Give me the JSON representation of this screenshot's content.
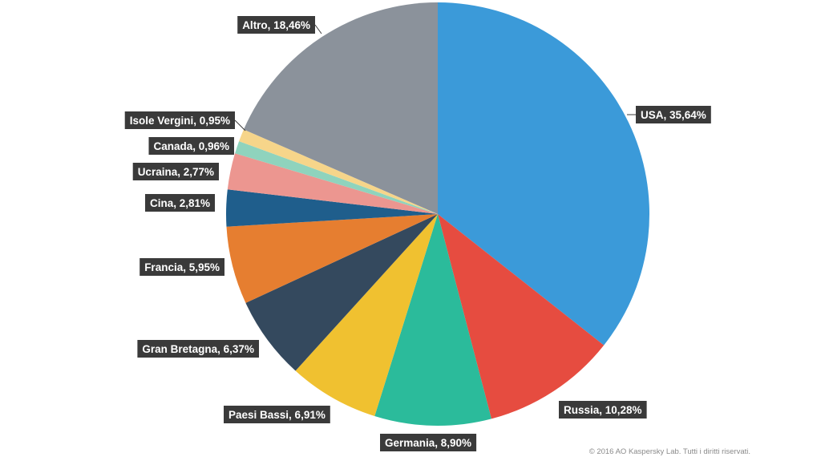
{
  "chart_data": {
    "type": "pie",
    "slices": [
      {
        "label": "USA, 35,64%",
        "name": "USA",
        "value": 35.64,
        "color": "#3b9ad9"
      },
      {
        "label": "Russia, 10,28%",
        "name": "Russia",
        "value": 10.28,
        "color": "#e64c40"
      },
      {
        "label": "Germania, 8,90%",
        "name": "Germania",
        "value": 8.9,
        "color": "#2bbb9b"
      },
      {
        "label": "Paesi Bassi, 6,91%",
        "name": "Paesi Bassi",
        "value": 6.91,
        "color": "#f0c130"
      },
      {
        "label": "Gran Bretagna, 6,37%",
        "name": "Gran Bretagna",
        "value": 6.37,
        "color": "#34495e"
      },
      {
        "label": "Francia, 5,95%",
        "name": "Francia",
        "value": 5.95,
        "color": "#e67e30"
      },
      {
        "label": "Cina, 2,81%",
        "name": "Cina",
        "value": 2.81,
        "color": "#1f5e8c"
      },
      {
        "label": "Ucraina, 2,77%",
        "name": "Ucraina",
        "value": 2.77,
        "color": "#ec9690"
      },
      {
        "label": "Canada, 0,96%",
        "name": "Canada",
        "value": 0.96,
        "color": "#8fd3bd"
      },
      {
        "label": "Isole Vergini, 0,95%",
        "name": "Isole Vergini",
        "value": 0.95,
        "color": "#f6d58a"
      },
      {
        "label": "Altro, 18,46%",
        "name": "Altro",
        "value": 18.46,
        "color": "#8b929b"
      }
    ],
    "label_style": {
      "background": "#3a3a3a",
      "text_color": "#ffffff"
    }
  },
  "footer": {
    "copyright": "© 2016 AO Kaspersky Lab. Tutti i diritti riservati."
  }
}
